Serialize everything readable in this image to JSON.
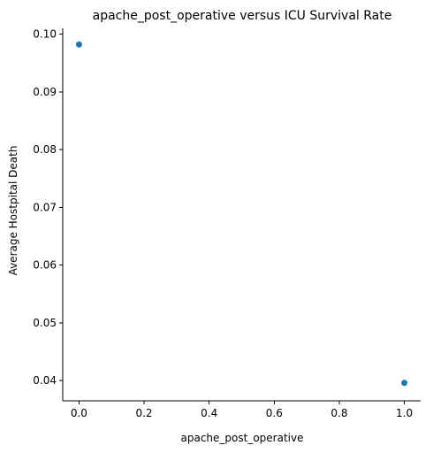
{
  "chart_data": {
    "type": "scatter",
    "title": "apache_post_operative versus ICU Survival Rate",
    "xlabel": "apache_post_operative",
    "ylabel": "Average Hostpital Death",
    "xlim": [
      -0.05,
      1.05
    ],
    "ylim": [
      0.0365,
      0.101
    ],
    "xticks": [
      0.0,
      0.2,
      0.4,
      0.6,
      0.8,
      1.0
    ],
    "xtick_labels": [
      "0.0",
      "0.2",
      "0.4",
      "0.6",
      "0.8",
      "1.0"
    ],
    "yticks": [
      0.04,
      0.05,
      0.06,
      0.07,
      0.08,
      0.09,
      0.1
    ],
    "ytick_labels": [
      "0.04",
      "0.05",
      "0.06",
      "0.07",
      "0.08",
      "0.09",
      "0.10"
    ],
    "grid": false,
    "marker_color": "#1f77b4",
    "points": [
      {
        "x": 0,
        "y": 0.0982
      },
      {
        "x": 1,
        "y": 0.0396
      }
    ]
  }
}
